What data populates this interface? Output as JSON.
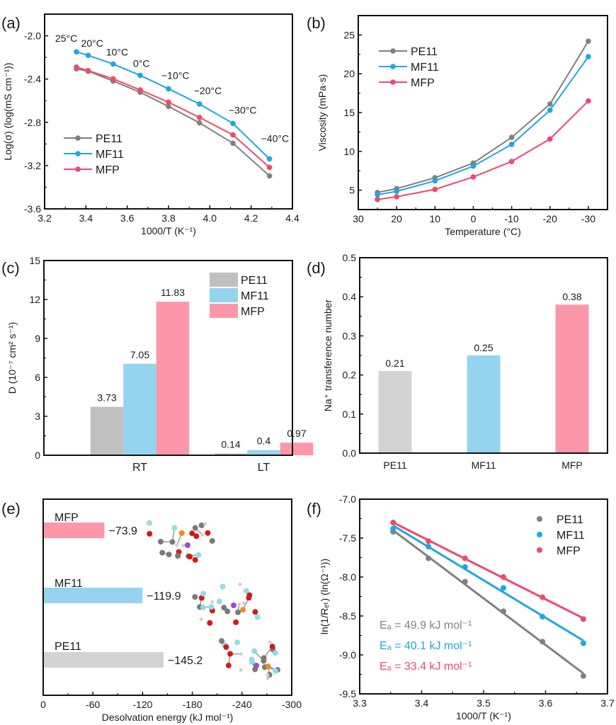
{
  "colors": {
    "PE11_line": "#808080",
    "MF11_line": "#1ea7e0",
    "MFP_line": "#ef4a6a",
    "PE11_bar": "#c0c0c0",
    "MF11_bar": "#94d4ef",
    "MFP_bar": "#fc97a9",
    "PE11_bar_d": "#d3d3d3"
  },
  "chart_data": [
    {
      "id": "a",
      "panel_label": "(a)",
      "type": "line",
      "xlabel": "1000/T (K⁻¹)",
      "ylabel": "Log(σ) (log(mS cm⁻¹))",
      "xlim": [
        3.2,
        4.4
      ],
      "ylim": [
        -3.6,
        -1.8
      ],
      "xticks": [
        3.2,
        3.4,
        3.6,
        3.8,
        4.0,
        4.2,
        4.4
      ],
      "xtick_labels": [
        "3.2",
        "3.4",
        "3.6",
        "3.8",
        "4.0",
        "4.2",
        "4.4"
      ],
      "yticks": [
        -2.0,
        -2.4,
        -2.8,
        -3.2,
        -3.6
      ],
      "ytick_labels": [
        "-2.0",
        "-2.4",
        "-2.8",
        "-3.2",
        "-3.6"
      ],
      "x": [
        3.354,
        3.411,
        3.532,
        3.663,
        3.8,
        3.95,
        4.112,
        4.289
      ],
      "series": [
        {
          "name": "PE11",
          "color_key": "PE11_line",
          "values": [
            -2.305,
            -2.327,
            -2.418,
            -2.522,
            -2.653,
            -2.805,
            -2.993,
            -3.295
          ]
        },
        {
          "name": "MF11",
          "color_key": "MF11_line",
          "values": [
            -2.148,
            -2.181,
            -2.261,
            -2.366,
            -2.49,
            -2.631,
            -2.81,
            -3.138
          ]
        },
        {
          "name": "MFP",
          "color_key": "MFP_line",
          "values": [
            -2.29,
            -2.322,
            -2.398,
            -2.501,
            -2.614,
            -2.755,
            -2.916,
            -3.217
          ]
        }
      ],
      "annotations": [
        "25°C",
        "20°C",
        "10°C",
        "0°C",
        "−10°C",
        "−20°C",
        "−30°C",
        "−40°C"
      ],
      "legend": [
        "PE11",
        "MF11",
        "MFP"
      ],
      "legend_position": "bottom-left",
      "grid": false
    },
    {
      "id": "b",
      "panel_label": "(b)",
      "type": "line",
      "xlabel": "Temperature (°C)",
      "ylabel": "Viscosity (mPa·s)",
      "xlim": [
        30,
        -35
      ],
      "ylim": [
        2.5,
        27.5
      ],
      "xticks": [
        30,
        20,
        10,
        0,
        -10,
        -20,
        -30
      ],
      "xtick_labels": [
        "30",
        "20",
        "10",
        "0",
        "-10",
        "-20",
        "-30"
      ],
      "yticks": [
        5,
        10,
        15,
        20,
        25
      ],
      "ytick_labels": [
        "5",
        "10",
        "15",
        "20",
        "25"
      ],
      "x": [
        25,
        20,
        10,
        0,
        -10,
        -20,
        -30
      ],
      "series": [
        {
          "name": "PE11",
          "color_key": "PE11_line",
          "values": [
            4.7,
            5.2,
            6.6,
            8.5,
            11.8,
            16.1,
            24.2
          ]
        },
        {
          "name": "MF11",
          "color_key": "MF11_line",
          "values": [
            4.4,
            4.85,
            6.2,
            8.1,
            10.9,
            15.3,
            22.2
          ]
        },
        {
          "name": "MFP",
          "color_key": "MFP_line",
          "values": [
            3.8,
            4.15,
            5.1,
            6.7,
            8.7,
            11.6,
            16.5
          ]
        }
      ],
      "legend": [
        "PE11",
        "MF11",
        "MFP"
      ],
      "legend_position": "top-left",
      "grid": false
    },
    {
      "id": "c",
      "panel_label": "(c)",
      "type": "bar",
      "xlabel": "",
      "ylabel": "D (10⁻⁷ cm² s⁻¹)",
      "ylim": [
        0,
        15
      ],
      "yticks": [
        0,
        3,
        6,
        9,
        12,
        15
      ],
      "ytick_labels": [
        "0",
        "3",
        "6",
        "9",
        "12",
        "15"
      ],
      "categories": [
        "RT",
        "LT"
      ],
      "series": [
        {
          "name": "PE11",
          "color_key": "PE11_bar",
          "values": [
            3.73,
            0.14
          ],
          "labels": [
            "3.73",
            "0.14"
          ]
        },
        {
          "name": "MF11",
          "color_key": "MF11_bar",
          "values": [
            7.05,
            0.4
          ],
          "labels": [
            "7.05",
            "0.4"
          ]
        },
        {
          "name": "MFP",
          "color_key": "MFP_bar",
          "values": [
            11.83,
            0.97
          ],
          "labels": [
            "11.83",
            "0.97"
          ]
        }
      ],
      "legend": [
        "PE11",
        "MF11",
        "MFP"
      ],
      "legend_position": "top-right",
      "grid": false
    },
    {
      "id": "d",
      "panel_label": "(d)",
      "type": "bar",
      "xlabel": "",
      "ylabel": "Na⁺ transference number",
      "ylim": [
        0,
        0.5
      ],
      "yticks": [
        0.0,
        0.1,
        0.2,
        0.3,
        0.4,
        0.5
      ],
      "ytick_labels": [
        "0.0",
        "0.1",
        "0.2",
        "0.3",
        "0.4",
        "0.5"
      ],
      "categories": [
        "PE11",
        "MF11",
        "MFP"
      ],
      "values": [
        0.21,
        0.25,
        0.38
      ],
      "labels": [
        "0.21",
        "0.25",
        "0.38"
      ],
      "color_keys": [
        "PE11_bar_d",
        "MF11_bar",
        "MFP_bar"
      ],
      "grid": false
    },
    {
      "id": "e",
      "panel_label": "(e)",
      "type": "bar",
      "orientation": "horizontal",
      "xlabel": "Desolvation energy (kJ mol⁻¹)",
      "ylabel": "",
      "xlim": [
        0,
        -300
      ],
      "xticks": [
        0,
        -60,
        -120,
        -180,
        -240,
        -300
      ],
      "xtick_labels": [
        "0",
        "-60",
        "-120",
        "-180",
        "-240",
        "-300"
      ],
      "categories": [
        "MFP",
        "MF11",
        "PE11"
      ],
      "values": [
        -73.9,
        -119.9,
        -145.2
      ],
      "labels": [
        "−73.9",
        "−119.9",
        "−145.2"
      ],
      "color_keys": [
        "MFP_bar",
        "MF11_bar",
        "PE11_bar_d"
      ],
      "insets": [
        "MFP solvation-structure molecule",
        "MF11 solvation-structure molecule",
        "PE11 solvation-structure molecule"
      ],
      "grid": false
    },
    {
      "id": "f",
      "panel_label": "(f)",
      "type": "scatter",
      "xlabel": "1000/T (K⁻¹)",
      "ylabel": "ln(1/Rₑₜ) (ln(Ω⁻¹))",
      "xlim": [
        3.3,
        3.7
      ],
      "ylim": [
        -9.5,
        -7.0
      ],
      "xticks": [
        3.3,
        3.4,
        3.5,
        3.6,
        3.7
      ],
      "xtick_labels": [
        "3.3",
        "3.4",
        "3.5",
        "3.6",
        "3.7"
      ],
      "yticks": [
        -7.0,
        -7.5,
        -8.0,
        -8.5,
        -9.0,
        -9.5
      ],
      "ytick_labels": [
        "-7.0",
        "-7.5",
        "-8.0",
        "-8.5",
        "-9.0",
        "-9.5"
      ],
      "x": [
        3.354,
        3.411,
        3.47,
        3.532,
        3.595,
        3.661
      ],
      "series": [
        {
          "name": "PE11",
          "color_key": "PE11_line",
          "values": [
            -7.42,
            -7.76,
            -8.06,
            -8.44,
            -8.83,
            -9.27
          ],
          "fit_label": "Eₐ = 49.9 kJ mol⁻¹"
        },
        {
          "name": "MF11",
          "color_key": "MF11_line",
          "values": [
            -7.38,
            -7.61,
            -7.87,
            -8.14,
            -8.51,
            -8.85
          ],
          "fit_label": "Eₐ = 40.1 kJ mol⁻¹"
        },
        {
          "name": "MFP",
          "color_key": "MFP_line",
          "values": [
            -7.3,
            -7.54,
            -7.76,
            -8.0,
            -8.26,
            -8.54
          ],
          "fit_label": "Eₐ = 33.4 kJ mol⁻¹"
        }
      ],
      "legend": [
        "PE11",
        "MF11",
        "MFP"
      ],
      "legend_position": "top-right",
      "fit": "linear",
      "grid": false
    }
  ]
}
